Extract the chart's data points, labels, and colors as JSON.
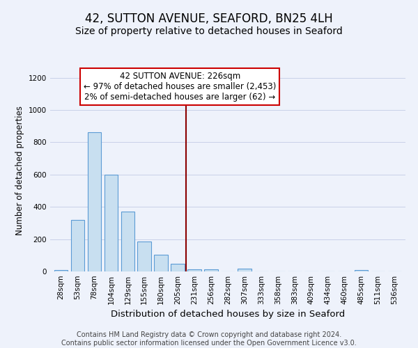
{
  "title": "42, SUTTON AVENUE, SEAFORD, BN25 4LH",
  "subtitle": "Size of property relative to detached houses in Seaford",
  "xlabel": "Distribution of detached houses by size in Seaford",
  "ylabel": "Number of detached properties",
  "bin_labels": [
    "28sqm",
    "53sqm",
    "78sqm",
    "104sqm",
    "129sqm",
    "155sqm",
    "180sqm",
    "205sqm",
    "231sqm",
    "256sqm",
    "282sqm",
    "307sqm",
    "333sqm",
    "358sqm",
    "383sqm",
    "409sqm",
    "434sqm",
    "460sqm",
    "485sqm",
    "511sqm",
    "536sqm"
  ],
  "bar_heights": [
    10,
    320,
    860,
    600,
    370,
    185,
    105,
    47,
    15,
    15,
    0,
    17,
    0,
    0,
    0,
    0,
    0,
    0,
    10,
    0,
    0
  ],
  "bar_color": "#c8dff0",
  "bar_edge_color": "#5b9bd5",
  "vline_x_idx": 8,
  "vline_color": "#8b0000",
  "annotation_text": "42 SUTTON AVENUE: 226sqm\n← 97% of detached houses are smaller (2,453)\n2% of semi-detached houses are larger (62) →",
  "annotation_box_color": "#ffffff",
  "annotation_box_edge": "#cc0000",
  "ylim": [
    0,
    1250
  ],
  "yticks": [
    0,
    200,
    400,
    600,
    800,
    1000,
    1200
  ],
  "footer_text": "Contains HM Land Registry data © Crown copyright and database right 2024.\nContains public sector information licensed under the Open Government Licence v3.0.",
  "title_fontsize": 12,
  "subtitle_fontsize": 10,
  "xlabel_fontsize": 9.5,
  "ylabel_fontsize": 8.5,
  "tick_fontsize": 7.5,
  "annotation_fontsize": 8.5,
  "footer_fontsize": 7,
  "background_color": "#eef2fb"
}
